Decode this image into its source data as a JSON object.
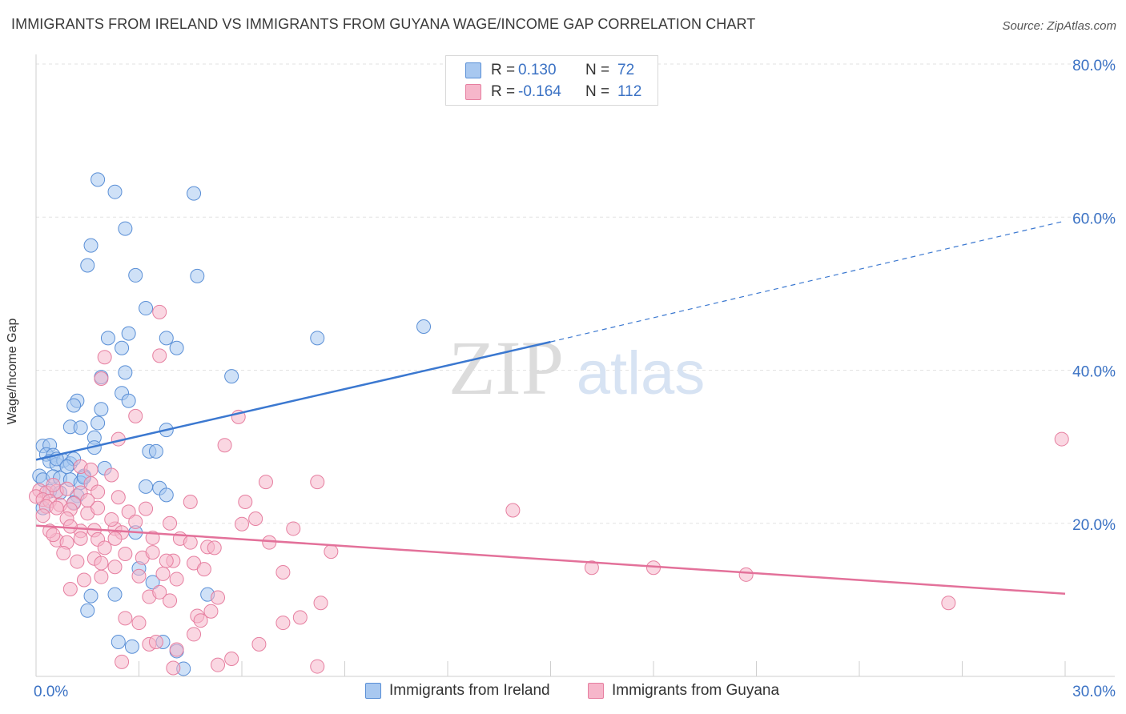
{
  "title": "IMMIGRANTS FROM IRELAND VS IMMIGRANTS FROM GUYANA WAGE/INCOME GAP CORRELATION CHART",
  "source": "Source: ZipAtlas.com",
  "watermark": {
    "zip": "ZIP",
    "atlas": "atlas"
  },
  "legend": {
    "rows": [
      {
        "r_label": "R =",
        "r_value": "0.130",
        "n_label": "N =",
        "n_value": "72",
        "color": "#a8c8f0"
      },
      {
        "r_label": "R =",
        "r_value": "-0.164",
        "n_label": "N =",
        "n_value": "112",
        "color": "#f6b6ca"
      }
    ]
  },
  "bottom_legend": [
    {
      "label": "Immigrants from Ireland",
      "color": "#a8c8f0"
    },
    {
      "label": "Immigrants from Guyana",
      "color": "#f6b6ca"
    }
  ],
  "colors": {
    "ireland_fill": "#a8c8f0",
    "ireland_stroke": "#5a8fd6",
    "ireland_line": "#3b78d0",
    "guyana_fill": "#f6b6ca",
    "guyana_stroke": "#e67fa0",
    "guyana_line": "#e3719a",
    "axis_label": "#3b72c4"
  },
  "chart_data": {
    "type": "scatter",
    "title": "IMMIGRANTS FROM IRELAND VS IMMIGRANTS FROM GUYANA WAGE/INCOME GAP CORRELATION CHART",
    "xlabel": "",
    "ylabel": "Wage/Income Gap",
    "xlim": [
      0,
      30
    ],
    "ylim": [
      0,
      80
    ],
    "x_tick_labels": [
      {
        "value": 0,
        "label": "0.0%"
      },
      {
        "value": 30,
        "label": "30.0%"
      }
    ],
    "y_tick_labels": [
      {
        "value": 20,
        "label": "20.0%"
      },
      {
        "value": 40,
        "label": "40.0%"
      },
      {
        "value": 60,
        "label": "60.0%"
      },
      {
        "value": 80,
        "label": "80.0%"
      }
    ],
    "grid": true,
    "legend_position": "top-center",
    "series": [
      {
        "name": "Immigrants from Ireland",
        "trend": {
          "x": [
            0,
            15
          ],
          "y": [
            28.3,
            43.7
          ],
          "extend_to": [
            30,
            59.5
          ]
        },
        "points": [
          [
            1.8,
            64.9
          ],
          [
            2.3,
            63.3
          ],
          [
            4.6,
            63.1
          ],
          [
            2.6,
            58.5
          ],
          [
            1.6,
            56.3
          ],
          [
            1.5,
            53.7
          ],
          [
            2.9,
            52.4
          ],
          [
            4.7,
            52.3
          ],
          [
            3.2,
            48.1
          ],
          [
            2.1,
            44.2
          ],
          [
            2.7,
            44.8
          ],
          [
            3.8,
            44.2
          ],
          [
            8.2,
            44.2
          ],
          [
            11.3,
            45.7
          ],
          [
            2.5,
            42.9
          ],
          [
            4.1,
            42.9
          ],
          [
            2.6,
            39.7
          ],
          [
            1.9,
            39.1
          ],
          [
            5.7,
            39.2
          ],
          [
            2.5,
            37.0
          ],
          [
            2.7,
            36.0
          ],
          [
            1.2,
            36.0
          ],
          [
            1.1,
            35.4
          ],
          [
            1.9,
            34.9
          ],
          [
            1.0,
            32.6
          ],
          [
            1.3,
            32.5
          ],
          [
            1.8,
            33.1
          ],
          [
            3.8,
            32.2
          ],
          [
            1.7,
            31.2
          ],
          [
            1.7,
            29.9
          ],
          [
            0.2,
            30.1
          ],
          [
            0.4,
            30.2
          ],
          [
            0.3,
            29.0
          ],
          [
            0.5,
            28.9
          ],
          [
            0.4,
            28.1
          ],
          [
            0.6,
            27.7
          ],
          [
            0.8,
            28.2
          ],
          [
            1.0,
            27.8
          ],
          [
            1.1,
            28.4
          ],
          [
            2.0,
            27.2
          ],
          [
            3.3,
            29.4
          ],
          [
            3.5,
            29.4
          ],
          [
            0.1,
            26.2
          ],
          [
            0.2,
            25.7
          ],
          [
            0.5,
            26.1
          ],
          [
            0.7,
            25.9
          ],
          [
            1.0,
            25.7
          ],
          [
            1.4,
            26.2
          ],
          [
            1.3,
            25.3
          ],
          [
            3.2,
            24.8
          ],
          [
            3.6,
            24.6
          ],
          [
            0.4,
            24.2
          ],
          [
            0.7,
            24.0
          ],
          [
            1.2,
            23.6
          ],
          [
            3.8,
            23.7
          ],
          [
            1.1,
            22.7
          ],
          [
            0.2,
            22.0
          ],
          [
            2.9,
            18.8
          ],
          [
            3.0,
            14.1
          ],
          [
            3.4,
            12.3
          ],
          [
            1.6,
            10.5
          ],
          [
            2.3,
            10.7
          ],
          [
            5.0,
            10.7
          ],
          [
            1.5,
            8.6
          ],
          [
            2.4,
            4.5
          ],
          [
            3.7,
            4.5
          ],
          [
            2.8,
            3.9
          ],
          [
            4.1,
            3.3
          ],
          [
            4.3,
            1.0
          ],
          [
            0.6,
            28.4
          ],
          [
            0.9,
            27.4
          ],
          [
            1.4,
            26.0
          ]
        ]
      },
      {
        "name": "Immigrants from Guyana",
        "trend": {
          "x": [
            0,
            30
          ],
          "y": [
            19.7,
            10.8
          ]
        },
        "points": [
          [
            3.6,
            47.6
          ],
          [
            2.0,
            41.7
          ],
          [
            3.6,
            41.9
          ],
          [
            1.9,
            38.9
          ],
          [
            2.9,
            34.0
          ],
          [
            5.9,
            33.9
          ],
          [
            2.4,
            31.0
          ],
          [
            5.5,
            30.2
          ],
          [
            29.9,
            31.0
          ],
          [
            1.3,
            27.4
          ],
          [
            6.7,
            25.4
          ],
          [
            8.2,
            25.4
          ],
          [
            1.6,
            25.2
          ],
          [
            1.3,
            24.0
          ],
          [
            1.8,
            24.1
          ],
          [
            0.1,
            24.3
          ],
          [
            0.3,
            24.0
          ],
          [
            0.6,
            24.2
          ],
          [
            0.0,
            23.5
          ],
          [
            0.2,
            23.1
          ],
          [
            0.4,
            22.9
          ],
          [
            0.7,
            22.4
          ],
          [
            1.1,
            22.6
          ],
          [
            2.4,
            23.4
          ],
          [
            4.5,
            22.8
          ],
          [
            6.1,
            22.8
          ],
          [
            0.3,
            22.2
          ],
          [
            0.6,
            22.0
          ],
          [
            1.0,
            21.8
          ],
          [
            1.5,
            21.3
          ],
          [
            3.2,
            21.9
          ],
          [
            6.4,
            20.6
          ],
          [
            13.9,
            21.7
          ],
          [
            0.9,
            20.6
          ],
          [
            1.3,
            19.0
          ],
          [
            1.7,
            19.1
          ],
          [
            2.3,
            19.3
          ],
          [
            2.5,
            18.8
          ],
          [
            6.0,
            19.9
          ],
          [
            7.5,
            19.3
          ],
          [
            0.6,
            17.8
          ],
          [
            0.9,
            17.5
          ],
          [
            1.3,
            18.0
          ],
          [
            1.8,
            17.9
          ],
          [
            2.3,
            18.0
          ],
          [
            3.4,
            18.1
          ],
          [
            4.2,
            18.0
          ],
          [
            4.5,
            17.5
          ],
          [
            0.8,
            16.1
          ],
          [
            1.7,
            15.4
          ],
          [
            2.6,
            16.0
          ],
          [
            3.1,
            15.5
          ],
          [
            3.4,
            16.2
          ],
          [
            4.0,
            15.1
          ],
          [
            5.0,
            16.9
          ],
          [
            5.2,
            16.8
          ],
          [
            8.6,
            16.3
          ],
          [
            1.9,
            14.8
          ],
          [
            2.3,
            14.3
          ],
          [
            3.8,
            15.1
          ],
          [
            4.6,
            14.8
          ],
          [
            16.2,
            14.2
          ],
          [
            18.0,
            14.2
          ],
          [
            20.7,
            13.3
          ],
          [
            7.2,
            13.6
          ],
          [
            1.4,
            12.6
          ],
          [
            1.9,
            13.0
          ],
          [
            3.0,
            13.1
          ],
          [
            3.7,
            13.4
          ],
          [
            4.1,
            12.7
          ],
          [
            5.3,
            10.3
          ],
          [
            3.3,
            10.4
          ],
          [
            3.9,
            9.9
          ],
          [
            8.3,
            9.6
          ],
          [
            26.6,
            9.6
          ],
          [
            4.7,
            7.9
          ],
          [
            4.8,
            7.3
          ],
          [
            5.1,
            8.5
          ],
          [
            7.2,
            7.0
          ],
          [
            7.7,
            7.7
          ],
          [
            3.0,
            7.0
          ],
          [
            2.6,
            7.6
          ],
          [
            3.3,
            4.2
          ],
          [
            4.6,
            5.5
          ],
          [
            3.5,
            4.5
          ],
          [
            6.5,
            4.2
          ],
          [
            5.7,
            2.3
          ],
          [
            5.3,
            1.5
          ],
          [
            8.2,
            1.3
          ],
          [
            2.5,
            1.9
          ],
          [
            4.1,
            3.5
          ],
          [
            4.0,
            1.1
          ],
          [
            1.6,
            27.0
          ],
          [
            2.2,
            26.3
          ],
          [
            0.5,
            25.0
          ],
          [
            1.8,
            22.0
          ],
          [
            2.7,
            21.5
          ],
          [
            0.9,
            24.5
          ],
          [
            1.5,
            23.0
          ],
          [
            0.2,
            21.0
          ],
          [
            3.9,
            20.0
          ],
          [
            2.9,
            20.2
          ],
          [
            1.0,
            19.6
          ],
          [
            0.4,
            19.0
          ],
          [
            2.0,
            16.8
          ],
          [
            1.2,
            15.0
          ],
          [
            3.6,
            11.0
          ],
          [
            1.0,
            11.4
          ],
          [
            0.5,
            18.5
          ],
          [
            4.9,
            14.0
          ],
          [
            2.2,
            20.5
          ],
          [
            6.8,
            17.5
          ]
        ]
      }
    ]
  }
}
